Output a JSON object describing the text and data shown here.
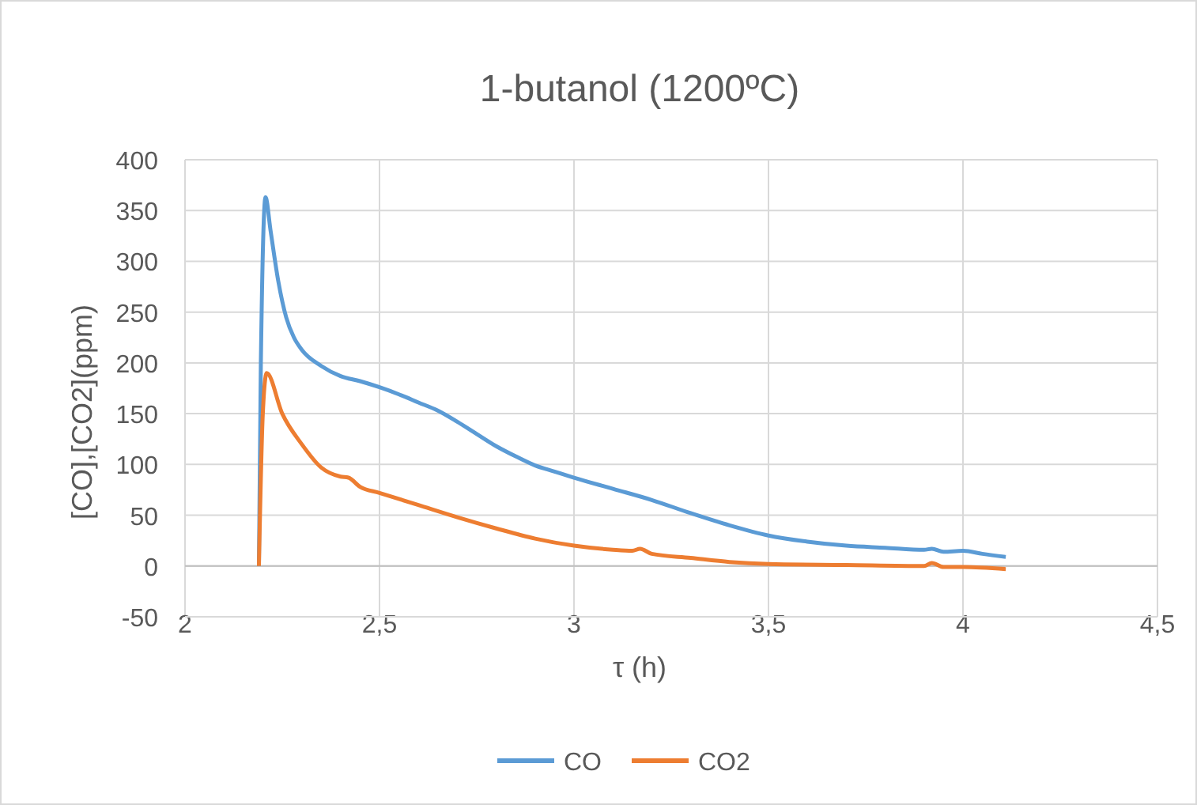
{
  "chart_data": {
    "type": "line",
    "title": "1-butanol (1200ºC)",
    "xlabel": "τ (h)",
    "ylabel": "[CO],[CO2](ppm)",
    "xlim": [
      2,
      4.5
    ],
    "ylim": [
      -50,
      400
    ],
    "xticks": [
      2,
      {
        "value": 2.5,
        "label": "2,5"
      },
      3,
      {
        "value": 3.5,
        "label": "3,5"
      },
      4,
      {
        "value": 4.5,
        "label": "4,5"
      }
    ],
    "yticks": [
      -50,
      0,
      50,
      100,
      150,
      200,
      250,
      300,
      350,
      400
    ],
    "grid": true,
    "legend": "bottom",
    "marker": "none",
    "line_style": "solid",
    "series": [
      {
        "name": "CO",
        "color": "#5b9bd5",
        "x": [
          2.19,
          2.195,
          2.207,
          2.22,
          2.24,
          2.26,
          2.28,
          2.3,
          2.35,
          2.4,
          2.45,
          2.5,
          2.55,
          2.6,
          2.65,
          2.7,
          2.75,
          2.8,
          2.85,
          2.9,
          2.95,
          3,
          3.1,
          3.2,
          3.3,
          3.4,
          3.5,
          3.6,
          3.7,
          3.8,
          3.9,
          3.92,
          3.95,
          4,
          4.05,
          4.11
        ],
        "values": [
          0,
          200,
          363,
          330,
          280,
          245,
          225,
          213,
          197,
          187,
          182,
          176,
          169,
          161,
          153,
          142,
          130,
          118,
          108,
          99,
          93,
          87,
          76,
          65,
          52,
          40,
          30,
          24,
          20,
          18,
          16,
          17,
          14,
          15,
          12,
          9
        ]
      },
      {
        "name": "CO2",
        "color": "#ed7d31",
        "x": [
          2.19,
          2.2,
          2.21,
          2.25,
          2.3,
          2.35,
          2.4,
          2.42,
          2.45,
          2.5,
          2.6,
          2.7,
          2.8,
          2.9,
          3,
          3.1,
          3.15,
          3.17,
          3.2,
          3.3,
          3.4,
          3.5,
          3.7,
          3.9,
          3.92,
          3.95,
          4,
          4.11
        ],
        "values": [
          0,
          150,
          190,
          150,
          120,
          97,
          88,
          87,
          78,
          72,
          60,
          48,
          37,
          27,
          20,
          16,
          15,
          17,
          12,
          8,
          4,
          2,
          1,
          0,
          3,
          -1,
          -1,
          -3
        ]
      }
    ]
  }
}
